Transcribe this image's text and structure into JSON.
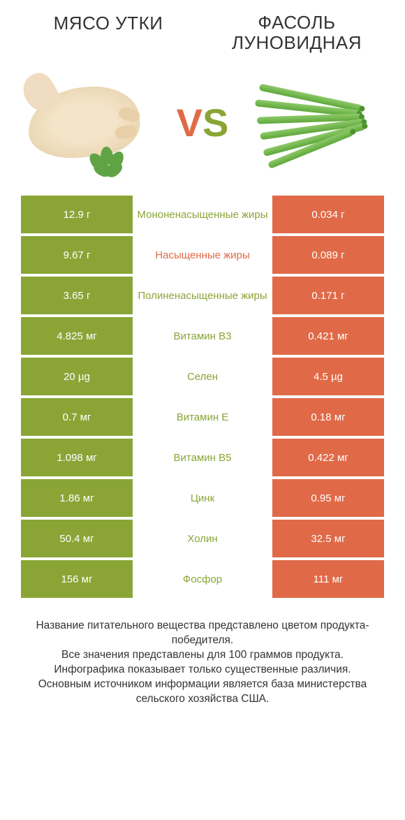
{
  "colors": {
    "left_bg": "#8aa536",
    "right_bg": "#e06a47",
    "mid_green": "#8aa536",
    "mid_orange": "#e06a47",
    "text_dark": "#333333"
  },
  "header": {
    "left_title": "МЯСО УТКИ",
    "right_title": "ФАСОЛЬ ЛУНОВИДНАЯ"
  },
  "vs": {
    "v": "V",
    "s": "S"
  },
  "rows": [
    {
      "left": "12.9 г",
      "label": "Мононенасыщенные жиры",
      "right": "0.034 г",
      "label_color": "left"
    },
    {
      "left": "9.67 г",
      "label": "Насыщенные жиры",
      "right": "0.089 г",
      "label_color": "right"
    },
    {
      "left": "3.65 г",
      "label": "Полиненасыщенные жиры",
      "right": "0.171 г",
      "label_color": "left"
    },
    {
      "left": "4.825 мг",
      "label": "Витамин B3",
      "right": "0.421 мг",
      "label_color": "left"
    },
    {
      "left": "20 µg",
      "label": "Селен",
      "right": "4.5 µg",
      "label_color": "left"
    },
    {
      "left": "0.7 мг",
      "label": "Витамин E",
      "right": "0.18 мг",
      "label_color": "left"
    },
    {
      "left": "1.098 мг",
      "label": "Витамин B5",
      "right": "0.422 мг",
      "label_color": "left"
    },
    {
      "left": "1.86 мг",
      "label": "Цинк",
      "right": "0.95 мг",
      "label_color": "left"
    },
    {
      "left": "50.4 мг",
      "label": "Холин",
      "right": "32.5 мг",
      "label_color": "left"
    },
    {
      "left": "156 мг",
      "label": "Фосфор",
      "right": "111 мг",
      "label_color": "left"
    }
  ],
  "footer": {
    "line1": "Название питательного вещества представлено цветом продукта-победителя.",
    "line2": "Все значения представлены для 100 граммов продукта.",
    "line3": "Инфографика показывает только существенные различия.",
    "line4": "Основным источником информации является база министерства сельского хозяйства США."
  }
}
